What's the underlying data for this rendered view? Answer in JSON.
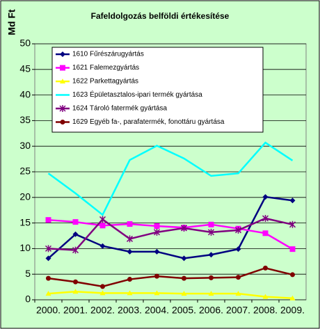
{
  "chart_data": {
    "type": "line",
    "title": "Fafeldolgozás belföldi értékesítése",
    "y_label": "Md Ft",
    "categories": [
      "2000.",
      "2001.",
      "2002.",
      "2003.",
      "2004.",
      "2005.",
      "2006.",
      "2007.",
      "2008.",
      "2009."
    ],
    "ylim": [
      0,
      50
    ],
    "yticks": [
      0,
      5,
      10,
      15,
      20,
      25,
      30,
      35,
      40,
      45,
      50
    ],
    "grid": true,
    "series": [
      {
        "name": "1610 Fűrészárugyártás",
        "color": "#000080",
        "marker": "diamond",
        "values": [
          8.1,
          12.8,
          10.5,
          9.4,
          9.4,
          8.1,
          8.8,
          9.9,
          20.1,
          19.4
        ]
      },
      {
        "name": "1621 Falemezgyártás",
        "color": "#ff00ff",
        "marker": "square",
        "values": [
          15.6,
          15.2,
          14.5,
          14.8,
          14.4,
          14.1,
          14.7,
          13.9,
          13.0,
          9.9
        ]
      },
      {
        "name": "1622 Parkettagyártás",
        "color": "#ffff00",
        "marker": "triangle",
        "values": [
          1.2,
          1.6,
          1.3,
          1.3,
          1.3,
          1.2,
          1.2,
          1.2,
          0.6,
          0.3
        ]
      },
      {
        "name": "1623 Épületasztalos-ipari termék gyártása",
        "color": "#00ffff",
        "marker": "none",
        "values": [
          24.7,
          20.8,
          16.6,
          27.3,
          30.1,
          27.6,
          24.2,
          24.7,
          30.7,
          27.2
        ]
      },
      {
        "name": "1624 Tároló fatermék gyártása",
        "color": "#800080",
        "marker": "star",
        "values": [
          10.0,
          9.7,
          15.7,
          11.9,
          13.2,
          14.0,
          13.2,
          13.6,
          15.9,
          14.7
        ]
      },
      {
        "name": "1629 Egyéb fa-, parafatermék, fonottáru gyártása",
        "color": "#800000",
        "marker": "circle",
        "values": [
          4.2,
          3.5,
          2.6,
          4.0,
          4.6,
          4.2,
          4.3,
          4.4,
          6.2,
          4.9
        ]
      }
    ]
  }
}
